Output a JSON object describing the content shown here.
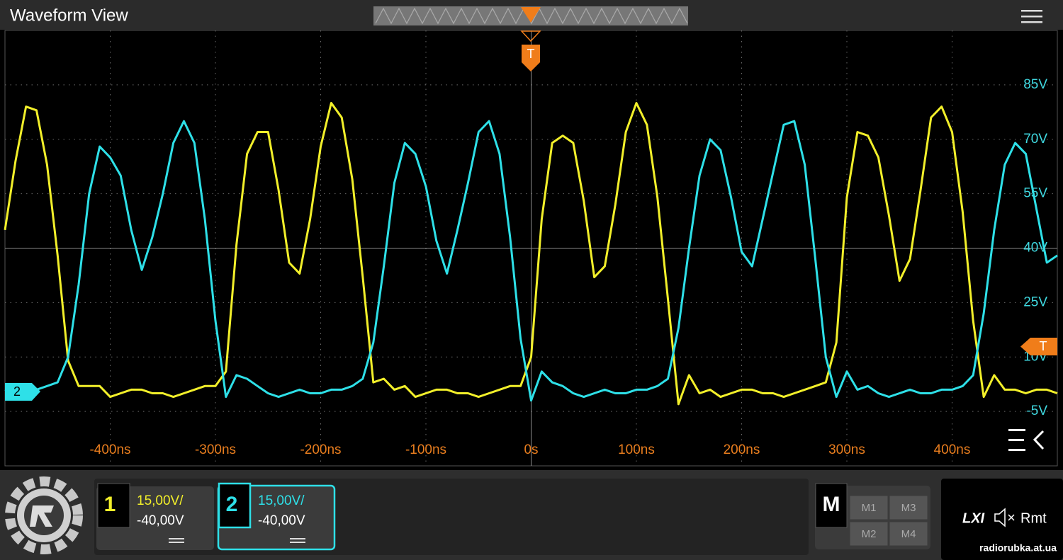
{
  "ui": {
    "title": "Waveform View",
    "trigger_label": "T",
    "channel_marker": "2",
    "channels": [
      {
        "number": "1",
        "scale": "15,00V/",
        "offset": "-40,00V"
      },
      {
        "number": "2",
        "scale": "15,00V/",
        "offset": "-40,00V"
      }
    ],
    "math": {
      "label": "M",
      "buttons": [
        "M1",
        "M3",
        "M2",
        "M4"
      ]
    },
    "status": {
      "lxi": "LXI",
      "remote": "Rmt"
    },
    "watermark": "radiorubka.at.ua"
  },
  "chart_data": {
    "type": "line",
    "xlim": [
      -500,
      500
    ],
    "xticks": [
      {
        "value": -400,
        "label": "-400ns"
      },
      {
        "value": -300,
        "label": "-300ns"
      },
      {
        "value": -200,
        "label": "-200ns"
      },
      {
        "value": -100,
        "label": "-100ns"
      },
      {
        "value": 0,
        "label": "0s"
      },
      {
        "value": 100,
        "label": "100ns"
      },
      {
        "value": 200,
        "label": "200ns"
      },
      {
        "value": 300,
        "label": "300ns"
      },
      {
        "value": 400,
        "label": "400ns"
      }
    ],
    "ylim": [
      -20,
      100
    ],
    "yticks": [
      {
        "value": 85,
        "label": "85V"
      },
      {
        "value": 70,
        "label": "70V"
      },
      {
        "value": 55,
        "label": "55V"
      },
      {
        "value": 40,
        "label": "40V"
      },
      {
        "value": 25,
        "label": "25V"
      },
      {
        "value": 10,
        "label": "10V"
      },
      {
        "value": -5,
        "label": "-5V"
      }
    ],
    "grid": true,
    "x": [
      -500,
      -490,
      -480,
      -470,
      -460,
      -450,
      -440,
      -430,
      -420,
      -410,
      -400,
      -390,
      -380,
      -370,
      -360,
      -350,
      -340,
      -330,
      -320,
      -310,
      -300,
      -290,
      -280,
      -270,
      -260,
      -250,
      -240,
      -230,
      -220,
      -210,
      -200,
      -190,
      -180,
      -170,
      -160,
      -150,
      -140,
      -130,
      -120,
      -110,
      -100,
      -90,
      -80,
      -70,
      -60,
      -50,
      -40,
      -30,
      -20,
      -10,
      0,
      10,
      20,
      30,
      40,
      50,
      60,
      70,
      80,
      90,
      100,
      110,
      120,
      130,
      140,
      150,
      160,
      170,
      180,
      190,
      200,
      210,
      220,
      230,
      240,
      250,
      260,
      270,
      280,
      290,
      300,
      310,
      320,
      330,
      340,
      350,
      360,
      370,
      380,
      390,
      400,
      410,
      420,
      430,
      440,
      450,
      460,
      470,
      480,
      490,
      500
    ],
    "series": [
      {
        "color": "#f2ef2a",
        "values": [
          45,
          64,
          79,
          78,
          63,
          38,
          9,
          2,
          2,
          2,
          -1,
          0,
          1,
          1,
          0,
          0,
          -1,
          0,
          1,
          2,
          2,
          6,
          41,
          66,
          72,
          72,
          56,
          36,
          33,
          48,
          68,
          80,
          76,
          59,
          32,
          3,
          4,
          1,
          2,
          -1,
          0,
          1,
          1,
          0,
          0,
          -1,
          0,
          1,
          2,
          2,
          10,
          48,
          69,
          71,
          69,
          53,
          32,
          35,
          52,
          72,
          80,
          74,
          54,
          26,
          -3,
          5,
          0,
          1,
          -1,
          0,
          1,
          1,
          0,
          0,
          -1,
          0,
          1,
          2,
          3,
          14,
          54,
          72,
          71,
          65,
          49,
          31,
          37,
          56,
          76,
          79,
          72,
          50,
          20,
          -1,
          5,
          1,
          1,
          0,
          1,
          1,
          0
        ]
      },
      {
        "color": "#2ee0e8",
        "values": [
          1,
          0,
          1,
          1,
          2,
          3,
          10,
          30,
          55,
          68,
          65,
          60,
          45,
          34,
          43,
          55,
          69,
          75,
          69,
          48,
          20,
          -1,
          5,
          4,
          2,
          0,
          -1,
          0,
          1,
          0,
          0,
          1,
          1,
          2,
          4,
          14,
          35,
          58,
          69,
          66,
          57,
          42,
          33,
          45,
          58,
          72,
          75,
          66,
          43,
          15,
          -2,
          6,
          3,
          2,
          0,
          -1,
          0,
          1,
          0,
          0,
          1,
          1,
          2,
          4,
          18,
          40,
          60,
          70,
          67,
          54,
          39,
          35,
          48,
          61,
          74,
          75,
          63,
          37,
          10,
          -1,
          6,
          1,
          2,
          0,
          -1,
          0,
          1,
          0,
          0,
          1,
          1,
          2,
          5,
          22,
          45,
          63,
          69,
          66,
          51,
          36,
          38
        ]
      }
    ]
  }
}
